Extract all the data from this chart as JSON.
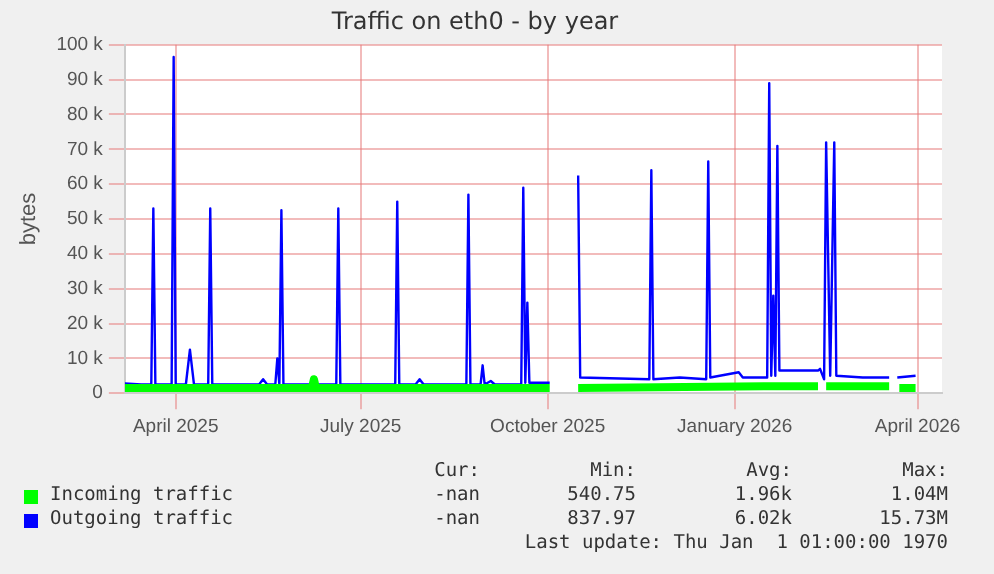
{
  "chart_data": {
    "type": "line",
    "title": "Traffic on eth0 - by year",
    "ylabel": "bytes",
    "xlim": [
      "2025-03-07",
      "2026-04-13"
    ],
    "xticks": [
      {
        "value": "2025-04-01",
        "label": "April 2025"
      },
      {
        "value": "2025-07-01",
        "label": "July 2025"
      },
      {
        "value": "2025-10-01",
        "label": "October 2025"
      },
      {
        "value": "2026-01-01",
        "label": "January 2026"
      },
      {
        "value": "2026-04-01",
        "label": "April 2026"
      }
    ],
    "ylim": [
      0,
      100000
    ],
    "yticks": [
      0,
      {
        "value": 10000,
        "label": "10 k"
      },
      {
        "value": 20000,
        "label": "20 k"
      },
      {
        "value": 30000,
        "label": "30 k"
      },
      {
        "value": 40000,
        "label": "40 k"
      },
      {
        "value": 50000,
        "label": "50 k"
      },
      {
        "value": 60000,
        "label": "60 k"
      },
      {
        "value": 70000,
        "label": "70 k"
      },
      {
        "value": 80000,
        "label": "80 k"
      },
      {
        "value": 90000,
        "label": "90 k"
      },
      {
        "value": 100000,
        "label": "100 k"
      }
    ],
    "grid": true,
    "legend": "bottom",
    "marker": "none",
    "line_style": "solid",
    "series": [
      {
        "name": "Incoming traffic",
        "color": "#00ff00",
        "x": [
          "2025-03-07",
          "2025-06-07",
          "2025-06-08",
          "2025-06-09",
          "2025-10-02",
          "2025-10-09",
          "2025-10-16",
          "2026-01-20",
          "2026-02-11",
          "2026-02-12",
          "2026-02-15",
          "2026-03-18",
          "2026-03-20",
          "2026-03-23",
          "2026-03-31"
        ],
        "values": [
          1500,
          1500,
          4000,
          1500,
          1500,
          null,
          1500,
          2000,
          2000,
          null,
          2000,
          2000,
          null,
          1500,
          1500
        ]
      },
      {
        "name": "Outgoing traffic",
        "color": "#0000ff",
        "x": [
          "2025-03-07",
          "2025-03-15",
          "2025-03-20",
          "2025-03-21",
          "2025-03-22",
          "2025-03-30",
          "2025-03-31",
          "2025-04-01",
          "2025-04-06",
          "2025-04-08",
          "2025-04-10",
          "2025-04-17",
          "2025-04-18",
          "2025-04-19",
          "2025-05-12",
          "2025-05-14",
          "2025-05-16",
          "2025-05-20",
          "2025-05-21",
          "2025-05-22",
          "2025-05-23",
          "2025-05-24",
          "2025-06-19",
          "2025-06-20",
          "2025-06-21",
          "2025-07-18",
          "2025-07-19",
          "2025-07-20",
          "2025-07-28",
          "2025-07-30",
          "2025-08-01",
          "2025-08-22",
          "2025-08-23",
          "2025-08-24",
          "2025-08-29",
          "2025-08-30",
          "2025-08-31",
          "2025-09-03",
          "2025-09-05",
          "2025-09-18",
          "2025-09-19",
          "2025-09-20",
          "2025-09-21",
          "2025-09-22",
          "2025-10-02",
          "2025-10-09",
          "2025-10-16",
          "2025-10-17",
          "2025-11-20",
          "2025-11-21",
          "2025-11-22",
          "2025-12-05",
          "2025-12-18",
          "2025-12-19",
          "2025-12-20",
          "2026-01-03",
          "2026-01-05",
          "2026-01-17",
          "2026-01-18",
          "2026-01-19",
          "2026-01-20",
          "2026-01-21",
          "2026-01-22",
          "2026-01-23",
          "2026-02-11",
          "2026-02-12",
          "2026-02-14",
          "2026-02-15",
          "2026-02-17",
          "2026-02-19",
          "2026-02-20",
          "2026-03-05",
          "2026-03-18",
          "2026-03-20",
          "2026-03-22",
          "2026-03-31"
        ],
        "values": [
          2800,
          2500,
          2500,
          53000,
          2500,
          2500,
          96500,
          2500,
          2500,
          12500,
          2500,
          2500,
          53000,
          2500,
          2500,
          4000,
          2500,
          2500,
          10000,
          2500,
          52500,
          2500,
          2500,
          53000,
          2500,
          2500,
          55000,
          2500,
          2500,
          4000,
          2500,
          2500,
          57000,
          2500,
          2500,
          8000,
          2500,
          3500,
          2500,
          2500,
          59000,
          3000,
          26000,
          3000,
          3000,
          null,
          62500,
          4500,
          4000,
          64000,
          4000,
          4500,
          4000,
          66500,
          4500,
          6000,
          4500,
          4500,
          89000,
          5000,
          28000,
          5000,
          71000,
          6500,
          6500,
          7000,
          4000,
          72000,
          5000,
          72000,
          5000,
          4500,
          4500,
          null,
          4500,
          5000
        ]
      }
    ],
    "annotations": [
      "Cur:",
      "Min:",
      "Avg:",
      "Max:",
      "-nan",
      "540.75",
      "1.96k",
      "1.04M",
      "-nan",
      "837.97",
      "6.02k",
      "15.73M",
      "Last update: Thu Jan  1 01:00:00 1970"
    ]
  }
}
